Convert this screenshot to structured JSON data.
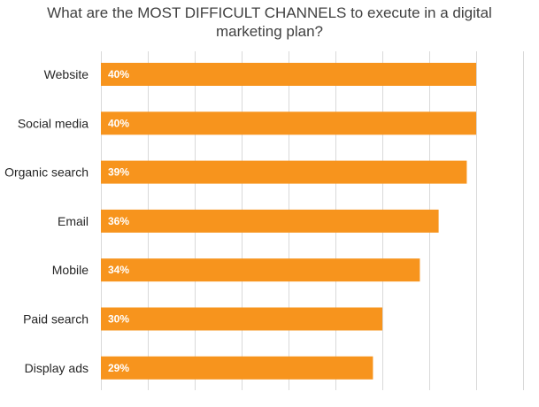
{
  "chart_data": {
    "type": "bar",
    "orientation": "horizontal",
    "title": "What are the MOST DIFFICULT CHANNELS to execute in a digital marketing plan?",
    "title_lines": [
      "What are the MOST DIFFICULT CHANNELS to execute in a digital",
      "marketing plan?"
    ],
    "categories": [
      "Website",
      "Social media",
      "Organic search",
      "Email",
      "Mobile",
      "Paid search",
      "Display ads"
    ],
    "values": [
      40,
      40,
      39,
      36,
      34,
      30,
      29
    ],
    "data_labels": [
      "40%",
      "40%",
      "39%",
      "36%",
      "34%",
      "30%",
      "29%"
    ],
    "xlim": [
      0,
      45
    ],
    "gridline_step": 5,
    "grid": true,
    "xlabel": "",
    "ylabel": "",
    "colors": {
      "bar": "#f7941d",
      "grid": "#d9d9d9",
      "label": "#ffffff"
    }
  }
}
